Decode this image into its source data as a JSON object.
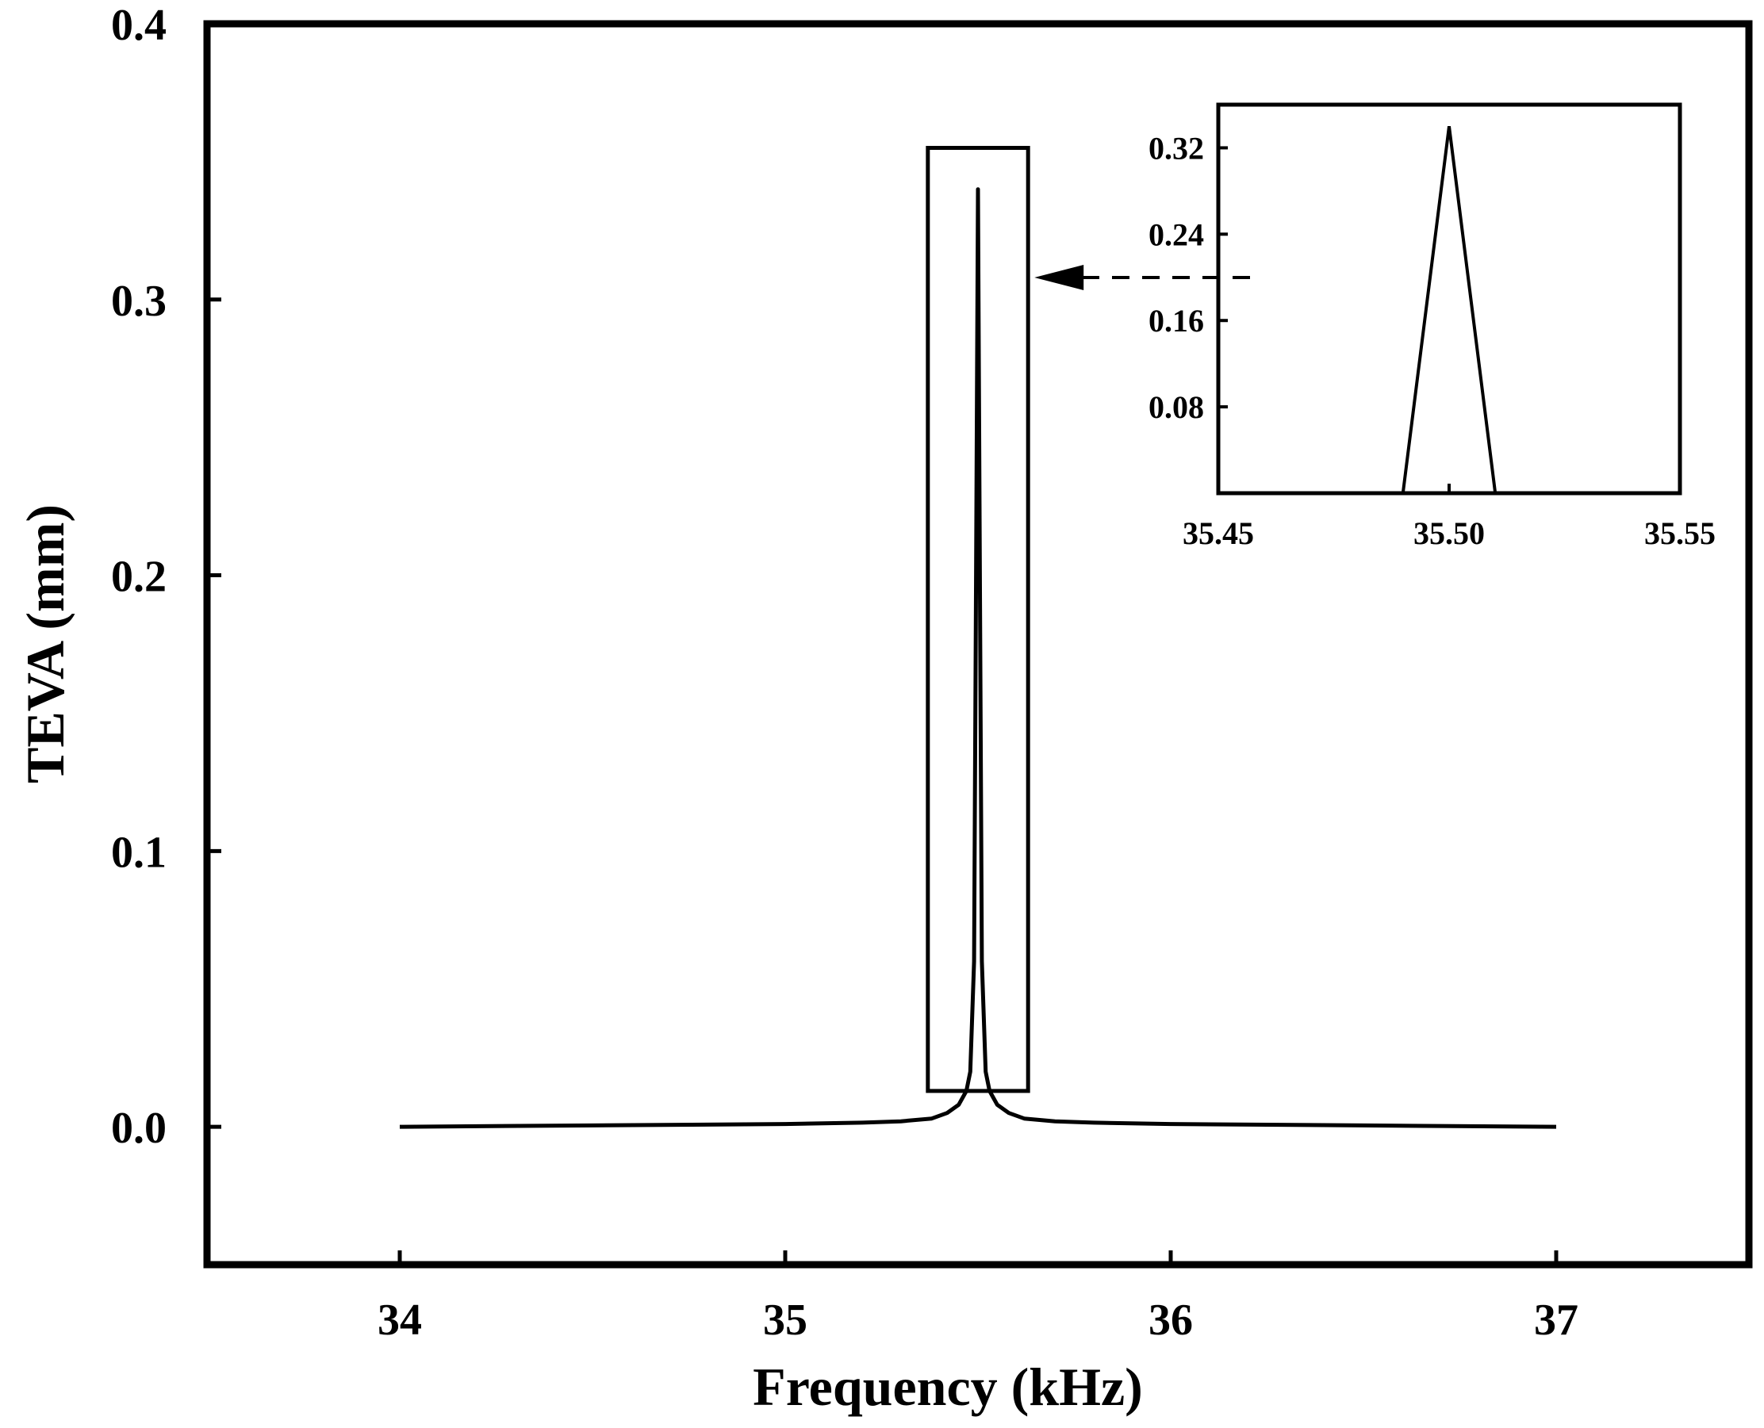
{
  "chart_data": [
    {
      "type": "line",
      "xlabel": "Frequency (kHz)",
      "ylabel": "TEVA (mm)",
      "xlim": [
        33.5,
        37.5
      ],
      "ylim": [
        -0.05,
        0.4
      ],
      "xticks": [
        34,
        35,
        36,
        37
      ],
      "xtick_labels": [
        "34",
        "35",
        "36",
        "37"
      ],
      "yticks": [
        0.0,
        0.1,
        0.2,
        0.3,
        0.4
      ],
      "ytick_labels": [
        "0.0",
        "0.1",
        "0.2",
        "0.3",
        "0.4"
      ],
      "grid": false,
      "legend": "none",
      "line_color": "#000000",
      "series": [
        {
          "x": [
            34.0,
            34.5,
            35.0,
            35.2,
            35.3,
            35.38,
            35.42,
            35.45,
            35.47,
            35.48,
            35.49,
            35.495,
            35.5,
            35.505,
            35.51,
            35.52,
            35.53,
            35.55,
            35.58,
            35.62,
            35.7,
            35.8,
            36.0,
            36.5,
            37.0
          ],
          "y": [
            0.0,
            0.0005,
            0.001,
            0.0015,
            0.002,
            0.003,
            0.005,
            0.008,
            0.013,
            0.02,
            0.06,
            0.2,
            0.34,
            0.2,
            0.06,
            0.02,
            0.013,
            0.008,
            0.005,
            0.003,
            0.002,
            0.0015,
            0.001,
            0.0005,
            0.0
          ]
        }
      ],
      "annotations": [
        {
          "type": "zoom-box",
          "x_range": [
            35.37,
            35.63
          ],
          "y_range": [
            0.013,
            0.355
          ]
        },
        {
          "type": "dashed-arrow",
          "from": "inset",
          "to": "zoom-box",
          "y": 0.308
        }
      ]
    },
    {
      "type": "line",
      "role": "inset",
      "xlabel": "",
      "ylabel": "",
      "xlim": [
        35.45,
        35.55
      ],
      "ylim": [
        0.0,
        0.36
      ],
      "xticks": [
        35.45,
        35.5,
        35.55
      ],
      "xtick_labels": [
        "35.45",
        "35.50",
        "35.55"
      ],
      "yticks": [
        0.08,
        0.16,
        0.24,
        0.32
      ],
      "ytick_labels": [
        "0.08",
        "0.16",
        "0.24",
        "0.32"
      ],
      "grid": false,
      "legend": "none",
      "line_color": "#000000",
      "series": [
        {
          "x": [
            35.49,
            35.5,
            35.51
          ],
          "y": [
            0.0,
            0.34,
            0.0
          ]
        }
      ]
    }
  ]
}
